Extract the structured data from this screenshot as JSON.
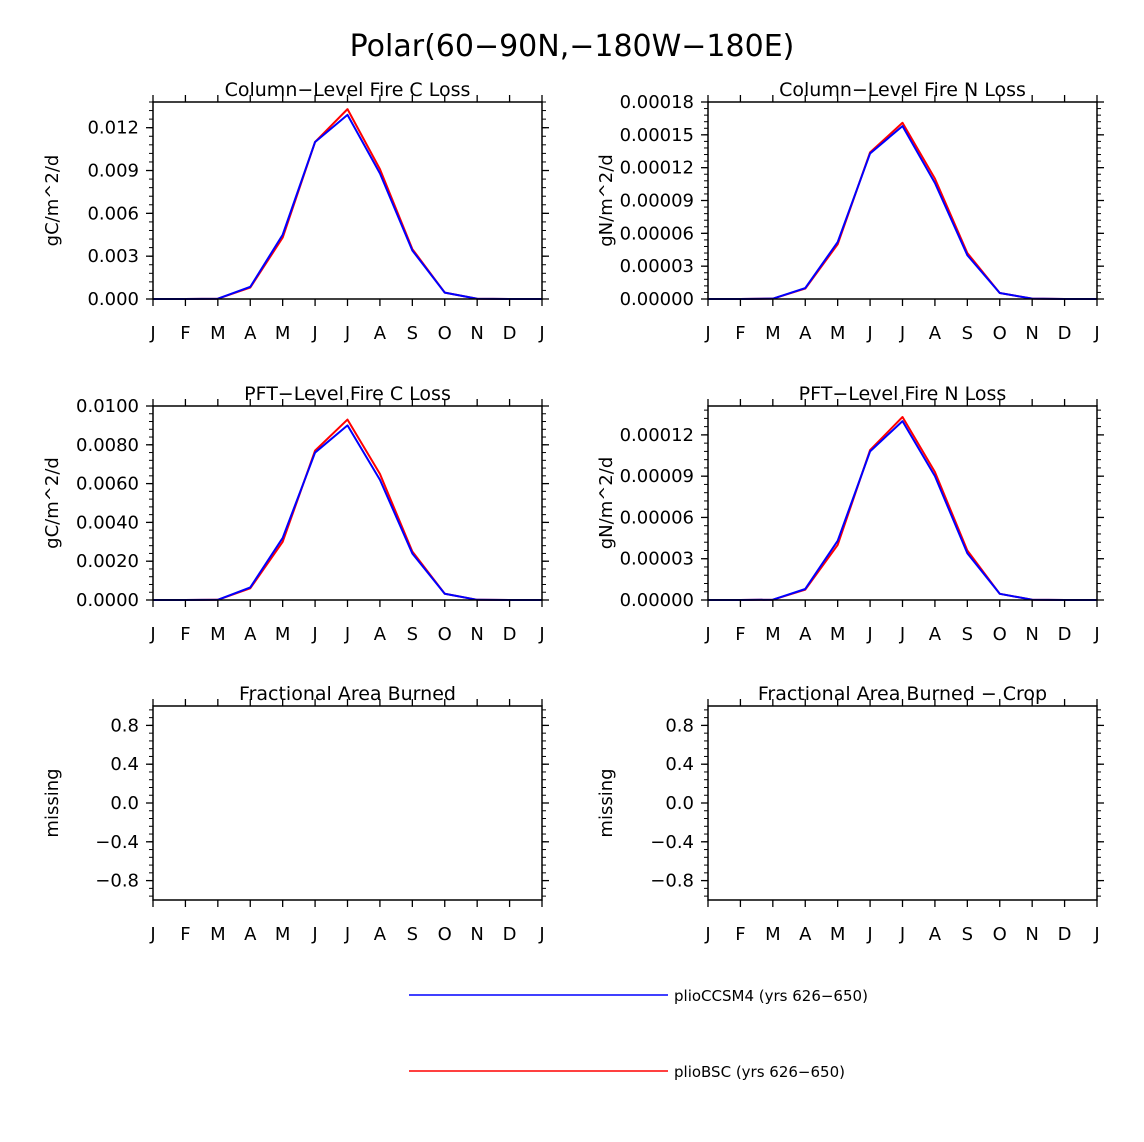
{
  "figure": {
    "title": "Polar(60−90N,−180W−180E)"
  },
  "colors": {
    "series_0": "#0000ff",
    "series_1": "#ff0000",
    "axis": "#000000",
    "background": "#ffffff"
  },
  "chart_data": [
    {
      "type": "line",
      "title": "Column−Level Fire C Loss",
      "ylabel": "gC/m^2/d",
      "xlabel": "",
      "x": [
        "J",
        "F",
        "M",
        "A",
        "M",
        "J",
        "J",
        "A",
        "S",
        "O",
        "N",
        "D",
        "J"
      ],
      "ylim": [
        0,
        0.0138
      ],
      "yticks": [
        0,
        0.003,
        0.006,
        0.009,
        0.012
      ],
      "ytick_labels": [
        "0.000",
        "0.003",
        "0.006",
        "0.009",
        "0.012"
      ],
      "grid": false,
      "series": [
        {
          "name": "plioCCSM4 (yrs 626−650)",
          "color": "#0000ff",
          "values": [
            0,
            0,
            2e-05,
            0.00085,
            0.0045,
            0.011,
            0.0129,
            0.0088,
            0.0034,
            0.00045,
            2e-05,
            0,
            0
          ]
        },
        {
          "name": "plioBSC (yrs 626−650)",
          "color": "#ff0000",
          "values": [
            0,
            0,
            2e-05,
            0.0008,
            0.0043,
            0.011,
            0.0133,
            0.0091,
            0.0035,
            0.00045,
            2e-05,
            0,
            0
          ]
        }
      ]
    },
    {
      "type": "line",
      "title": "Column−Level Fire N Loss",
      "ylabel": "gN/m^2/d",
      "xlabel": "",
      "x": [
        "J",
        "F",
        "M",
        "A",
        "M",
        "J",
        "J",
        "A",
        "S",
        "O",
        "N",
        "D",
        "J"
      ],
      "ylim": [
        0,
        0.00018
      ],
      "yticks": [
        0,
        3e-05,
        6e-05,
        9e-05,
        0.00012,
        0.00015,
        0.00018
      ],
      "ytick_labels": [
        "0.00000",
        "0.00003",
        "0.00006",
        "0.00009",
        "0.00012",
        "0.00015",
        "0.00018"
      ],
      "grid": false,
      "series": [
        {
          "name": "plioCCSM4 (yrs 626−650)",
          "color": "#0000ff",
          "values": [
            0,
            0,
            3e-07,
            1e-05,
            5.2e-05,
            0.000133,
            0.000158,
            0.000106,
            4e-05,
            5.5e-06,
            3e-07,
            0,
            0
          ]
        },
        {
          "name": "plioBSC (yrs 626−650)",
          "color": "#ff0000",
          "values": [
            0,
            0,
            3e-07,
            9.5e-06,
            5e-05,
            0.000134,
            0.000161,
            0.00011,
            4.2e-05,
            5.5e-06,
            3e-07,
            0,
            0
          ]
        }
      ]
    },
    {
      "type": "line",
      "title": "PFT−Level Fire C Loss",
      "ylabel": "gC/m^2/d",
      "xlabel": "",
      "x": [
        "J",
        "F",
        "M",
        "A",
        "M",
        "J",
        "J",
        "A",
        "S",
        "O",
        "N",
        "D",
        "J"
      ],
      "ylim": [
        0,
        0.01
      ],
      "yticks": [
        0,
        0.002,
        0.004,
        0.006,
        0.008,
        0.01
      ],
      "ytick_labels": [
        "0.0000",
        "0.0020",
        "0.0040",
        "0.0060",
        "0.0080",
        "0.0100"
      ],
      "grid": false,
      "series": [
        {
          "name": "plioCCSM4 (yrs 626−650)",
          "color": "#0000ff",
          "values": [
            0,
            0,
            1e-05,
            0.00065,
            0.0032,
            0.0076,
            0.009,
            0.0062,
            0.0024,
            0.00032,
            1e-05,
            0,
            0
          ]
        },
        {
          "name": "plioBSC (yrs 626−650)",
          "color": "#ff0000",
          "values": [
            0,
            0,
            1e-05,
            0.0006,
            0.003,
            0.0077,
            0.0093,
            0.0065,
            0.0025,
            0.00032,
            1e-05,
            0,
            0
          ]
        }
      ]
    },
    {
      "type": "line",
      "title": "PFT−Level Fire N Loss",
      "ylabel": "gN/m^2/d",
      "xlabel": "",
      "x": [
        "J",
        "F",
        "M",
        "A",
        "M",
        "J",
        "J",
        "A",
        "S",
        "O",
        "N",
        "D",
        "J"
      ],
      "ylim": [
        0,
        0.000141
      ],
      "yticks": [
        0,
        3e-05,
        6e-05,
        9e-05,
        0.00012
      ],
      "ytick_labels": [
        "0.00000",
        "0.00003",
        "0.00006",
        "0.00009",
        "0.00012"
      ],
      "grid": false,
      "series": [
        {
          "name": "plioCCSM4 (yrs 626−650)",
          "color": "#0000ff",
          "values": [
            0,
            0,
            2e-07,
            8e-06,
            4.3e-05,
            0.000108,
            0.00013,
            9e-05,
            3.4e-05,
            4.5e-06,
            2e-07,
            0,
            0
          ]
        },
        {
          "name": "plioBSC (yrs 626−650)",
          "color": "#ff0000",
          "values": [
            0,
            0,
            2e-07,
            7.5e-06,
            4e-05,
            0.000109,
            0.000133,
            9.3e-05,
            3.6e-05,
            4.5e-06,
            2e-07,
            0,
            0
          ]
        }
      ]
    },
    {
      "type": "line",
      "title": "Fractional Area Burned",
      "ylabel": "missing",
      "xlabel": "",
      "x": [
        "J",
        "F",
        "M",
        "A",
        "M",
        "J",
        "J",
        "A",
        "S",
        "O",
        "N",
        "D",
        "J"
      ],
      "ylim": [
        -1,
        1
      ],
      "yticks": [
        -0.8,
        -0.4,
        0,
        0.4,
        0.8
      ],
      "ytick_labels": [
        "−0.8",
        "−0.4",
        "0.0",
        "0.4",
        "0.8"
      ],
      "grid": false,
      "series": []
    },
    {
      "type": "line",
      "title": "Fractional Area Burned − Crop",
      "ylabel": "missing",
      "xlabel": "",
      "x": [
        "J",
        "F",
        "M",
        "A",
        "M",
        "J",
        "J",
        "A",
        "S",
        "O",
        "N",
        "D",
        "J"
      ],
      "ylim": [
        -1,
        1
      ],
      "yticks": [
        -0.8,
        -0.4,
        0,
        0.4,
        0.8
      ],
      "ytick_labels": [
        "−0.8",
        "−0.4",
        "0.0",
        "0.4",
        "0.8"
      ],
      "grid": false,
      "series": []
    }
  ],
  "legend": {
    "entries": [
      {
        "label": "plioCCSM4 (yrs 626−650)",
        "color": "#0000ff"
      },
      {
        "label": "plioBSC (yrs 626−650)",
        "color": "#ff0000"
      }
    ]
  }
}
